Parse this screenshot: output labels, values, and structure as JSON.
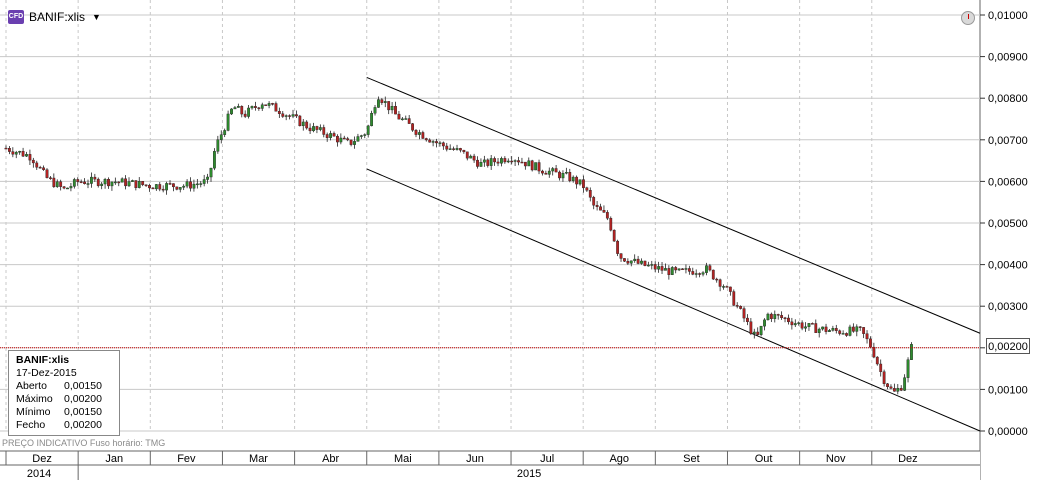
{
  "header": {
    "symbol_badge": "CFD",
    "symbol": "BANIF:xlis",
    "dropdown_icon": "caret-down-icon",
    "tz_icon": "clock-icon"
  },
  "info_box": {
    "title": "BANIF:xlis",
    "date": "17-Dez-2015",
    "rows": [
      {
        "label": "Aberto",
        "value": "0,00150"
      },
      {
        "label": "Máximo",
        "value": "0,00200"
      },
      {
        "label": "Mínimo",
        "value": "0,00150"
      },
      {
        "label": "Fecho",
        "value": "0,00200"
      }
    ]
  },
  "footer": {
    "price_note": "PREÇO INDICATIVO",
    "timezone": "Fuso horário: TMG"
  },
  "current_price_label": "0,00200",
  "colors": {
    "up": "#2e8b2e",
    "down": "#b22222",
    "grid": "#c8c8c8",
    "current_line": "#cc0000",
    "channel": "#000000"
  },
  "chart_data": {
    "type": "candlestick",
    "title": "",
    "ylim": [
      0,
      0.01
    ],
    "y_ticks": [
      {
        "value": 0.0,
        "label": "0,00000"
      },
      {
        "value": 0.001,
        "label": "0,00100"
      },
      {
        "value": 0.002,
        "label": "0,00200"
      },
      {
        "value": 0.003,
        "label": "0,00300"
      },
      {
        "value": 0.004,
        "label": "0,00400"
      },
      {
        "value": 0.005,
        "label": "0,00500"
      },
      {
        "value": 0.006,
        "label": "0,00600"
      },
      {
        "value": 0.007,
        "label": "0,00700"
      },
      {
        "value": 0.008,
        "label": "0,00800"
      },
      {
        "value": 0.009,
        "label": "0,00900"
      },
      {
        "value": 0.01,
        "label": "0,01000"
      }
    ],
    "x_domain": [
      0,
      13.5
    ],
    "months": [
      {
        "label": "Dez",
        "pos": 0
      },
      {
        "label": "Jan",
        "pos": 1
      },
      {
        "label": "Fev",
        "pos": 2
      },
      {
        "label": "Mar",
        "pos": 3
      },
      {
        "label": "Abr",
        "pos": 4
      },
      {
        "label": "Mai",
        "pos": 5
      },
      {
        "label": "Jun",
        "pos": 6
      },
      {
        "label": "Jul",
        "pos": 7
      },
      {
        "label": "Ago",
        "pos": 8
      },
      {
        "label": "Set",
        "pos": 9
      },
      {
        "label": "Out",
        "pos": 10
      },
      {
        "label": "Nov",
        "pos": 11
      },
      {
        "label": "Dez",
        "pos": 12
      }
    ],
    "years": [
      {
        "label": "2014",
        "pos": 0
      },
      {
        "label": "2015",
        "pos": 6
      }
    ],
    "year_boundary": 1,
    "current_value": 0.002,
    "channel_lines": [
      {
        "x1": 5.0,
        "y1": 0.0085,
        "x2": 13.5,
        "y2": 0.00235
      },
      {
        "x1": 5.0,
        "y1": 0.0063,
        "x2": 13.5,
        "y2": 0.0
      }
    ],
    "trend": [
      [
        0.0,
        0.0068
      ],
      [
        0.35,
        0.0066
      ],
      [
        0.55,
        0.0061
      ],
      [
        0.8,
        0.0058
      ],
      [
        1.0,
        0.006
      ],
      [
        1.5,
        0.006
      ],
      [
        2.0,
        0.0059
      ],
      [
        2.5,
        0.0059
      ],
      [
        2.8,
        0.006
      ],
      [
        2.9,
        0.0068
      ],
      [
        3.0,
        0.0072
      ],
      [
        3.15,
        0.0078
      ],
      [
        3.3,
        0.0076
      ],
      [
        3.55,
        0.0079
      ],
      [
        3.8,
        0.0077
      ],
      [
        4.2,
        0.0073
      ],
      [
        4.5,
        0.0071
      ],
      [
        4.75,
        0.0069
      ],
      [
        5.0,
        0.0072
      ],
      [
        5.15,
        0.0081
      ],
      [
        5.4,
        0.0076
      ],
      [
        5.7,
        0.0072
      ],
      [
        6.0,
        0.0069
      ],
      [
        6.3,
        0.0067
      ],
      [
        6.6,
        0.0064
      ],
      [
        7.0,
        0.0066
      ],
      [
        7.4,
        0.0063
      ],
      [
        7.8,
        0.0061
      ],
      [
        8.0,
        0.0059
      ],
      [
        8.15,
        0.0054
      ],
      [
        8.35,
        0.0051
      ],
      [
        8.5,
        0.0042
      ],
      [
        8.8,
        0.004
      ],
      [
        9.3,
        0.0038
      ],
      [
        9.7,
        0.0039
      ],
      [
        9.95,
        0.0035
      ],
      [
        10.2,
        0.0028
      ],
      [
        10.4,
        0.0022
      ],
      [
        10.55,
        0.0028
      ],
      [
        10.8,
        0.0027
      ],
      [
        11.1,
        0.0025
      ],
      [
        11.5,
        0.0024
      ],
      [
        11.85,
        0.0024
      ],
      [
        12.0,
        0.002
      ],
      [
        12.15,
        0.0013
      ],
      [
        12.3,
        0.0009
      ],
      [
        12.42,
        0.0011
      ],
      [
        12.48,
        0.0015
      ],
      [
        12.55,
        0.002
      ]
    ],
    "series": [
      {
        "name": "BANIF:xlis"
      }
    ]
  }
}
